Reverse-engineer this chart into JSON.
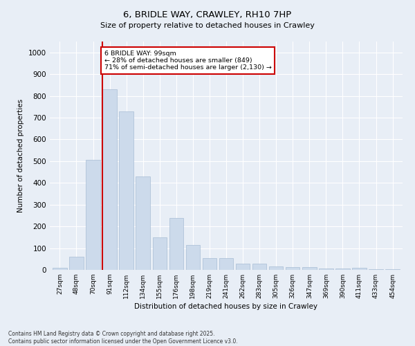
{
  "title": "6, BRIDLE WAY, CRAWLEY, RH10 7HP",
  "subtitle": "Size of property relative to detached houses in Crawley",
  "xlabel": "Distribution of detached houses by size in Crawley",
  "ylabel": "Number of detached properties",
  "bar_color": "#ccdaeb",
  "bar_edge_color": "#a8bdd4",
  "background_color": "#e8eef6",
  "grid_color": "#ffffff",
  "fig_background": "#e8eef6",
  "categories": [
    "27sqm",
    "48sqm",
    "70sqm",
    "91sqm",
    "112sqm",
    "134sqm",
    "155sqm",
    "176sqm",
    "198sqm",
    "219sqm",
    "241sqm",
    "262sqm",
    "283sqm",
    "305sqm",
    "326sqm",
    "347sqm",
    "369sqm",
    "390sqm",
    "411sqm",
    "433sqm",
    "454sqm"
  ],
  "values": [
    10,
    60,
    505,
    830,
    730,
    430,
    150,
    240,
    115,
    55,
    55,
    28,
    28,
    15,
    12,
    12,
    5,
    5,
    10,
    2,
    2
  ],
  "property_bar_index": 3,
  "vline_color": "#cc0000",
  "annotation_text": "6 BRIDLE WAY: 99sqm\n← 28% of detached houses are smaller (849)\n71% of semi-detached houses are larger (2,130) →",
  "annotation_box_color": "#ffffff",
  "annotation_box_edge": "#cc0000",
  "ylim": [
    0,
    1050
  ],
  "yticks": [
    0,
    100,
    200,
    300,
    400,
    500,
    600,
    700,
    800,
    900,
    1000
  ],
  "footnote": "Contains HM Land Registry data © Crown copyright and database right 2025.\nContains public sector information licensed under the Open Government Licence v3.0."
}
